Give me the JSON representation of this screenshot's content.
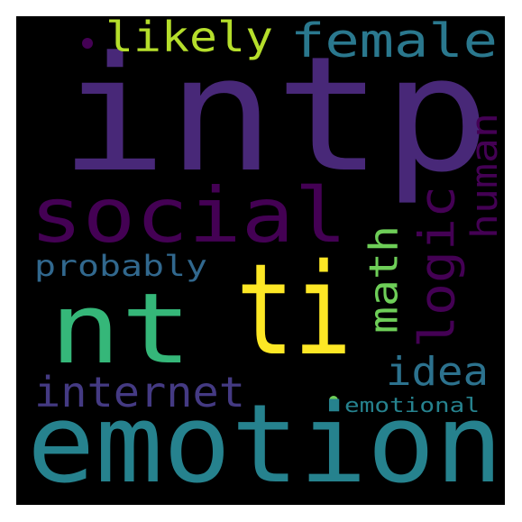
{
  "background": "#000000",
  "words": [
    {
      "text": "intp",
      "color": "#482878",
      "name": "word-intp"
    },
    {
      "text": "emotion",
      "color": "#26828e",
      "name": "word-emotion"
    },
    {
      "text": "ti",
      "color": "#fde725",
      "name": "word-ti"
    },
    {
      "text": "nt",
      "color": "#35b779",
      "name": "word-nt"
    },
    {
      "text": "social",
      "color": "#440154",
      "name": "word-social"
    },
    {
      "text": "female",
      "color": "#2a788e",
      "name": "word-female"
    },
    {
      "text": "likely",
      "color": "#b5de2b",
      "name": "word-likely"
    },
    {
      "text": "logic",
      "color": "#440154",
      "name": "word-logic"
    },
    {
      "text": "human",
      "color": "#440154",
      "name": "word-human"
    },
    {
      "text": "math",
      "color": "#6ece58",
      "name": "word-math"
    },
    {
      "text": "probably",
      "color": "#31688e",
      "name": "word-probably"
    },
    {
      "text": "internet",
      "color": "#443a83",
      "name": "word-internet"
    },
    {
      "text": "idea",
      "color": "#2c728e",
      "name": "word-idea"
    },
    {
      "text": "emotional",
      "color": "#26828e",
      "name": "word-emotional"
    }
  ]
}
